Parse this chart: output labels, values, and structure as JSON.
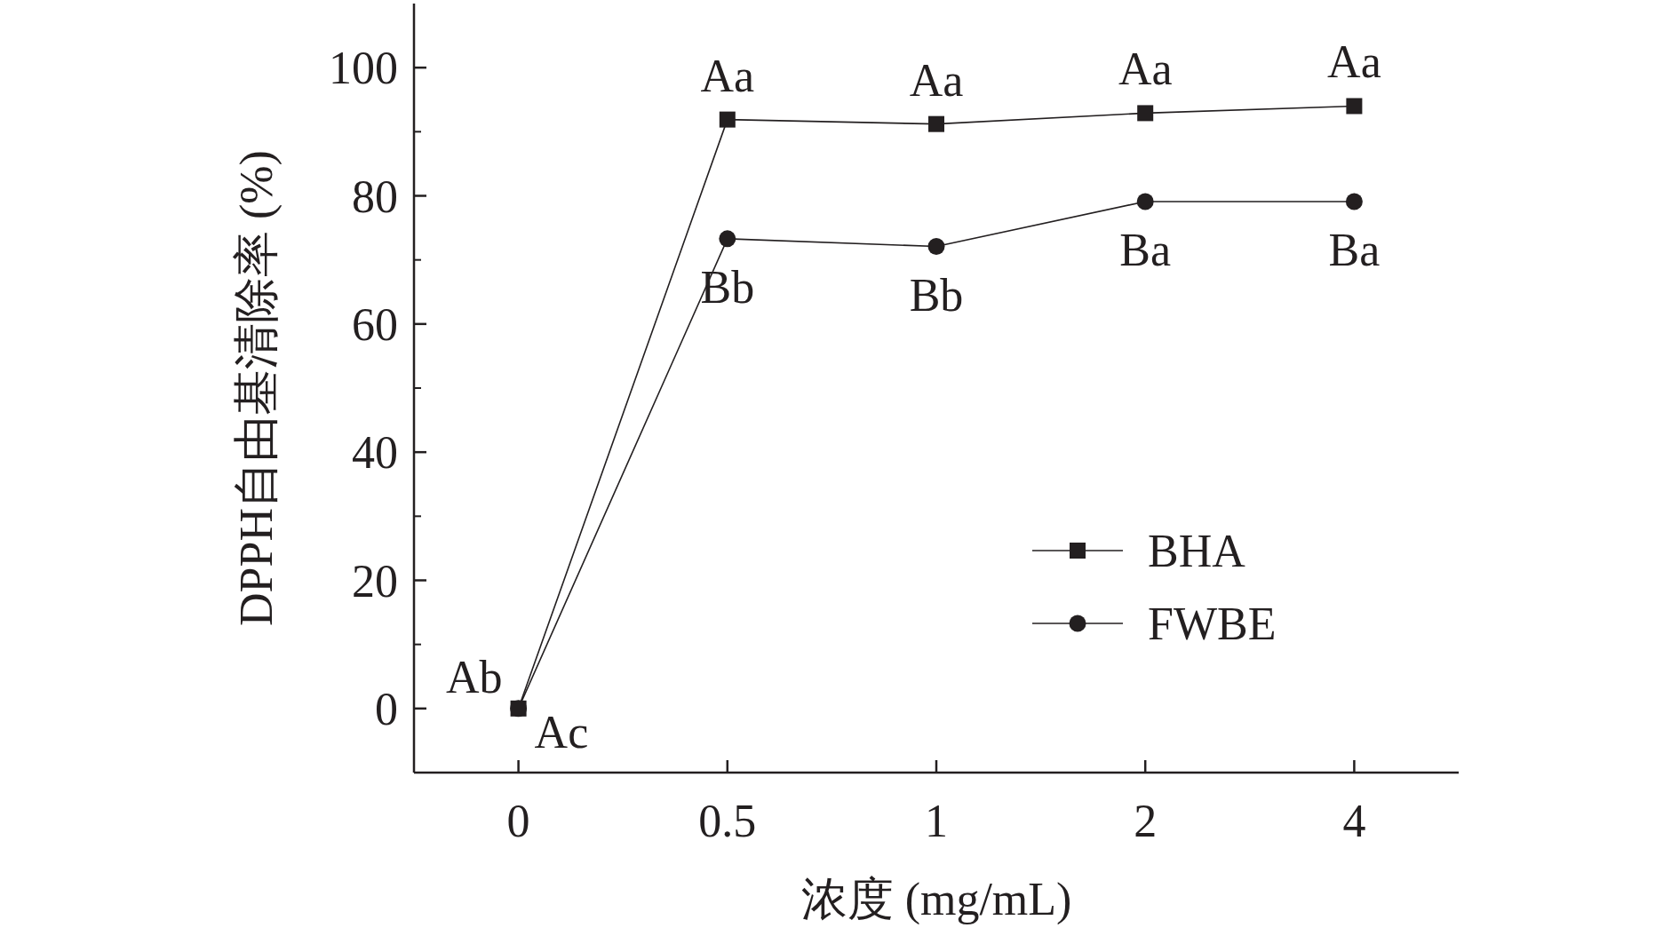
{
  "chart_data": {
    "type": "line",
    "xlabel": "浓度 (mg/mL)",
    "ylabel": "DPPH自由基清除率 (%)",
    "categories": [
      "0",
      "0.5",
      "1",
      "2",
      "4"
    ],
    "series": [
      {
        "name": "BHA",
        "color": "#231f20",
        "marker": "square",
        "values": [
          0,
          91.9,
          91.2,
          92.9,
          94.0
        ]
      },
      {
        "name": "FWBE",
        "color": "#231f20",
        "marker": "circle",
        "values": [
          0,
          73.3,
          72.1,
          79.1,
          79.1
        ]
      }
    ],
    "ylim": [
      -10,
      110
    ],
    "yticks": [
      0,
      20,
      40,
      60,
      80,
      100
    ],
    "legend": "bottom right",
    "grid": false,
    "line_style": "solid",
    "annotations": [
      {
        "text": "Ab",
        "x": "0",
        "y": 0
      },
      {
        "text": "Ac",
        "x": "0",
        "y": 0
      },
      {
        "text": "Aa",
        "x": "0.5",
        "y": 91.9
      },
      {
        "text": "Bb",
        "x": "0.5",
        "y": 73.3
      },
      {
        "text": "Aa",
        "x": "1",
        "y": 91.2
      },
      {
        "text": "Bb",
        "x": "1",
        "y": 72.1
      },
      {
        "text": "Aa",
        "x": "2",
        "y": 92.9
      },
      {
        "text": "Ba",
        "x": "2",
        "y": 79.1
      },
      {
        "text": "Aa",
        "x": "4",
        "y": 94.0
      },
      {
        "text": "Ba",
        "x": "4",
        "y": 79.1
      }
    ]
  }
}
